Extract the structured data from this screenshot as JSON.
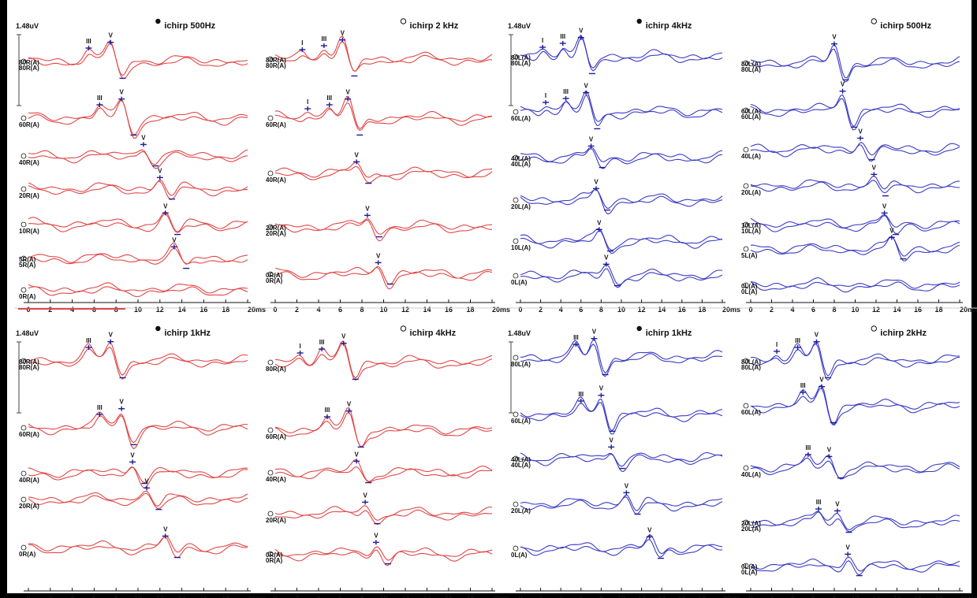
{
  "colors": {
    "right_ear": "#e04848",
    "left_ear": "#3c3cc4",
    "marker": "#1c1c9a",
    "axis": "#111111",
    "divider": "#cccccc"
  },
  "chart_data": [
    {
      "type": "line",
      "title": "ichirp 500Hz",
      "ear": "right",
      "legend_marker": "filled",
      "scale_label": "1.48uV",
      "xlim": [
        0,
        20
      ],
      "xunit": "ms",
      "x_ticks": [
        "0",
        "2",
        "4",
        "6",
        "8",
        "10",
        "12",
        "14",
        "16",
        "18",
        "20ms"
      ],
      "traces": [
        {
          "label": "80R(A)",
          "label2": "80R(A)",
          "peaks": [
            {
              "name": "III",
              "latency": 5.5
            },
            {
              "name": "V",
              "latency": 7.5
            }
          ]
        },
        {
          "label": "60R(A)",
          "peaks": [
            {
              "name": "III",
              "latency": 6.5
            },
            {
              "name": "V",
              "latency": 8.5
            }
          ]
        },
        {
          "label": "40R(A)",
          "peaks": [
            {
              "name": "V",
              "latency": 10.5
            }
          ]
        },
        {
          "label": "20R(A)",
          "peaks": [
            {
              "name": "V",
              "latency": 12.0
            }
          ]
        },
        {
          "label": "10R(A)",
          "peaks": [
            {
              "name": "V",
              "latency": 12.5
            }
          ]
        },
        {
          "label": "5R(A)",
          "label2": "5R(A)",
          "peaks": [
            {
              "name": "V",
              "latency": 13.3
            }
          ]
        },
        {
          "label": "0R(A)",
          "peaks": []
        }
      ]
    },
    {
      "type": "line",
      "title": "ichirp 2 kHz",
      "ear": "right",
      "legend_marker": "open",
      "scale_label": "",
      "xlim": [
        0,
        20
      ],
      "xunit": "ms",
      "x_ticks": [
        "0",
        "2",
        "4",
        "6",
        "8",
        "10",
        "12",
        "14",
        "16",
        "18",
        "20ms"
      ],
      "traces": [
        {
          "label": "80R(A)",
          "label2": "80R(A)",
          "peaks": [
            {
              "name": "I",
              "latency": 2.5
            },
            {
              "name": "III",
              "latency": 4.5
            },
            {
              "name": "V",
              "latency": 6.2
            }
          ]
        },
        {
          "label": "60R(A)",
          "peaks": [
            {
              "name": "I",
              "latency": 3.0
            },
            {
              "name": "III",
              "latency": 5.0
            },
            {
              "name": "V",
              "latency": 6.7
            }
          ]
        },
        {
          "label": "40R(A)",
          "peaks": [
            {
              "name": "V",
              "latency": 7.5
            }
          ]
        },
        {
          "label": "20R(A)",
          "label2": "20R(A)",
          "peaks": [
            {
              "name": "V",
              "latency": 8.5
            }
          ]
        },
        {
          "label": "0R(A)",
          "label2": "0R(A)",
          "peaks": [
            {
              "name": "V",
              "latency": 9.5
            }
          ]
        }
      ]
    },
    {
      "type": "line",
      "title": "ichirp 4kHz",
      "ear": "left",
      "legend_marker": "filled",
      "scale_label": "1.48uV",
      "xlim": [
        0,
        20
      ],
      "xunit": "ms",
      "x_ticks": [
        "0",
        "2",
        "4",
        "6",
        "8",
        "10",
        "12",
        "14",
        "16",
        "18",
        "20ms"
      ],
      "traces": [
        {
          "label": "80L(A)",
          "label2": "80L(A)",
          "peaks": [
            {
              "name": "I",
              "latency": 2.2
            },
            {
              "name": "III",
              "latency": 4.2
            },
            {
              "name": "V",
              "latency": 6.0
            }
          ]
        },
        {
          "label": "60L(A)",
          "peaks": [
            {
              "name": "I",
              "latency": 2.5
            },
            {
              "name": "III",
              "latency": 4.5
            },
            {
              "name": "V",
              "latency": 6.5
            }
          ]
        },
        {
          "label": "40L(A)",
          "label2": "40L(A)",
          "peaks": [
            {
              "name": "V",
              "latency": 7.0
            }
          ]
        },
        {
          "label": "20L(A)",
          "peaks": [
            {
              "name": "V",
              "latency": 7.5
            }
          ]
        },
        {
          "label": "10L(A)",
          "peaks": [
            {
              "name": "V",
              "latency": 7.8
            }
          ]
        },
        {
          "label": "0L(A)",
          "peaks": [
            {
              "name": "V",
              "latency": 8.5
            }
          ]
        }
      ]
    },
    {
      "type": "line",
      "title": "ichirp 500Hz",
      "ear": "left",
      "legend_marker": "open",
      "scale_label": "",
      "xlim": [
        0,
        20
      ],
      "xunit": "ms",
      "x_ticks": [
        "0",
        "2",
        "4",
        "6",
        "8",
        "10",
        "12",
        "14",
        "16",
        "18",
        "20ms"
      ],
      "traces": [
        {
          "label": "80L(A)",
          "label2": "80L(A)",
          "peaks": [
            {
              "name": "V",
              "latency": 8.0
            }
          ]
        },
        {
          "label": "60L(A)",
          "label2": "60L(A)",
          "peaks": [
            {
              "name": "V",
              "latency": 8.8
            }
          ]
        },
        {
          "label": "40L(A)",
          "peaks": [
            {
              "name": "V",
              "latency": 10.5
            }
          ]
        },
        {
          "label": "20L(A)",
          "peaks": [
            {
              "name": "V",
              "latency": 11.8
            }
          ]
        },
        {
          "label": "10L(A)",
          "label2": "10L(A)",
          "peaks": [
            {
              "name": "V",
              "latency": 12.8
            }
          ]
        },
        {
          "label": "5L(A)",
          "peaks": [
            {
              "name": "V",
              "latency": 13.5
            }
          ]
        },
        {
          "label": "0L(A)",
          "label2": "0L(A)",
          "peaks": []
        }
      ]
    },
    {
      "type": "line",
      "title": "ichirp 1kHz",
      "ear": "right",
      "legend_marker": "filled",
      "scale_label": "1.48uV",
      "xlim": [
        0,
        20
      ],
      "xunit": "ms",
      "x_ticks": [
        "0",
        "2",
        "4",
        "6",
        "8",
        "10",
        "12",
        "14",
        "16",
        "18",
        "20ms"
      ],
      "traces": [
        {
          "label": "80R(A)",
          "label2": "80R(A)",
          "peaks": [
            {
              "name": "III",
              "latency": 5.5
            },
            {
              "name": "V",
              "latency": 7.5
            }
          ]
        },
        {
          "label": "60R(A)",
          "peaks": [
            {
              "name": "III",
              "latency": 6.5
            },
            {
              "name": "V",
              "latency": 8.5
            }
          ]
        },
        {
          "label": "40R(A)",
          "peaks": [
            {
              "name": "V",
              "latency": 9.5
            }
          ]
        },
        {
          "label": "20R(A)",
          "peaks": [
            {
              "name": "V",
              "latency": 10.8
            }
          ]
        },
        {
          "label": "0R(A)",
          "peaks": [
            {
              "name": "V",
              "latency": 12.5
            }
          ]
        }
      ]
    },
    {
      "type": "line",
      "title": "ichirp 4kHz",
      "ear": "right",
      "legend_marker": "open",
      "scale_label": "",
      "xlim": [
        0,
        20
      ],
      "xunit": "ms",
      "x_ticks": [
        "0",
        "2",
        "4",
        "6",
        "8",
        "10",
        "12",
        "14",
        "16",
        "18",
        "20ms"
      ],
      "traces": [
        {
          "label": "80R(A)",
          "peaks": [
            {
              "name": "I",
              "latency": 2.3
            },
            {
              "name": "III",
              "latency": 4.3
            },
            {
              "name": "V",
              "latency": 6.3
            }
          ]
        },
        {
          "label": "60R(A)",
          "peaks": [
            {
              "name": "III",
              "latency": 4.8
            },
            {
              "name": "V",
              "latency": 6.8
            }
          ]
        },
        {
          "label": "40R(A)",
          "peaks": [
            {
              "name": "V",
              "latency": 7.5
            }
          ]
        },
        {
          "label": "20R(A)",
          "peaks": [
            {
              "name": "V",
              "latency": 8.3
            }
          ]
        },
        {
          "label": "0R(A)",
          "label2": "0R(A)",
          "peaks": [
            {
              "name": "V",
              "latency": 9.3
            }
          ]
        }
      ]
    },
    {
      "type": "line",
      "title": "ichirp 1kHz",
      "ear": "left",
      "legend_marker": "filled",
      "scale_label": "1.48uV",
      "xlim": [
        0,
        20
      ],
      "xunit": "ms",
      "x_ticks": [
        "0",
        "2",
        "4",
        "6",
        "8",
        "10",
        "12",
        "14",
        "16",
        "18",
        "20ms"
      ],
      "traces": [
        {
          "label": "80L(A)",
          "peaks": [
            {
              "name": "III",
              "latency": 5.5
            },
            {
              "name": "V",
              "latency": 7.3
            }
          ]
        },
        {
          "label": "60L(A)",
          "peaks": [
            {
              "name": "III",
              "latency": 6.0
            },
            {
              "name": "V",
              "latency": 8.0
            }
          ]
        },
        {
          "label": "40L(A)",
          "label2": "40L(A)",
          "peaks": [
            {
              "name": "V",
              "latency": 9.0
            }
          ]
        },
        {
          "label": "20L(A)",
          "peaks": [
            {
              "name": "V",
              "latency": 10.5
            }
          ]
        },
        {
          "label": "0L(A)",
          "peaks": [
            {
              "name": "V",
              "latency": 12.8
            }
          ]
        }
      ]
    },
    {
      "type": "line",
      "title": "ichirp 2kHz",
      "ear": "left",
      "legend_marker": "open",
      "scale_label": "",
      "xlim": [
        0,
        20
      ],
      "xunit": "ms",
      "x_ticks": [
        "0",
        "2",
        "4",
        "6",
        "8",
        "10",
        "12",
        "14",
        "16",
        "18",
        "20ms"
      ],
      "traces": [
        {
          "label": "80L(A)",
          "label2": "80L(A)",
          "peaks": [
            {
              "name": "I",
              "latency": 2.5
            },
            {
              "name": "III",
              "latency": 4.5
            },
            {
              "name": "V",
              "latency": 6.3
            }
          ]
        },
        {
          "label": "60L(A)",
          "peaks": [
            {
              "name": "III",
              "latency": 5.0
            },
            {
              "name": "V",
              "latency": 6.8
            }
          ]
        },
        {
          "label": "40L(A)",
          "peaks": [
            {
              "name": "III",
              "latency": 5.5
            },
            {
              "name": "V",
              "latency": 7.5
            }
          ]
        },
        {
          "label": "20L(A)",
          "label2": "20L(A)",
          "peaks": [
            {
              "name": "III",
              "latency": 6.5
            },
            {
              "name": "V",
              "latency": 8.3
            }
          ]
        },
        {
          "label": "0L(A)",
          "label2": "0L(A)",
          "peaks": [
            {
              "name": "V",
              "latency": 9.3
            }
          ]
        }
      ]
    }
  ]
}
